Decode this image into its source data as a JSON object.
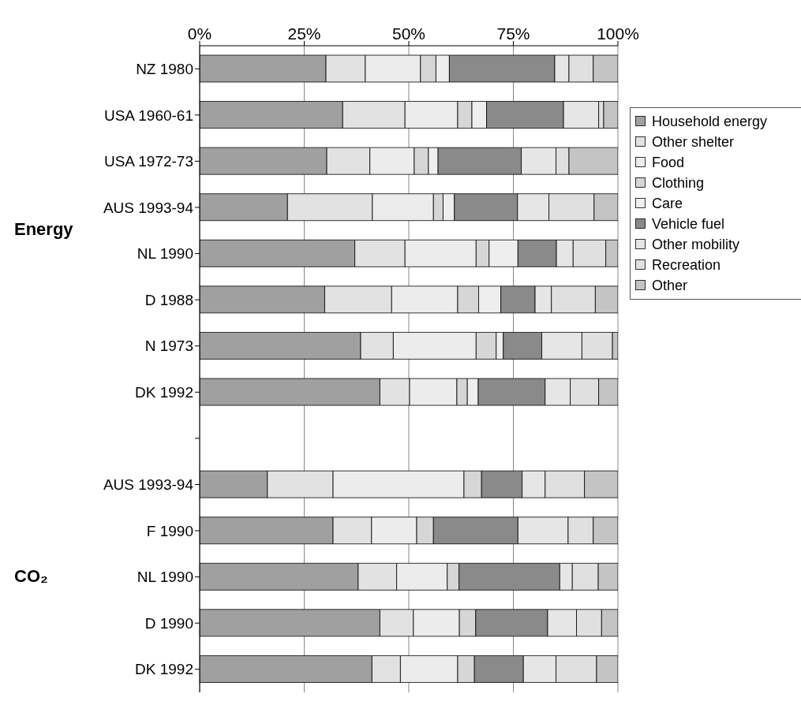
{
  "chart_data": {
    "type": "bar",
    "orientation": "horizontal",
    "stacked": true,
    "categories": [
      "NZ 1980",
      "USA 1960-61",
      "USA 1972-73",
      "AUS 1993-94",
      "NL 1990",
      "D 1988",
      "N 1973",
      "DK 1992",
      null,
      "AUS 1993-94",
      "F 1990",
      "NL 1990",
      "D 1990",
      "DK 1992"
    ],
    "series": [
      {
        "name": "Household energy",
        "color": "#a0a0a0",
        "values": [
          30.2,
          34.2,
          30.4,
          21.0,
          37.1,
          29.9,
          38.5,
          43.1,
          null,
          16.2,
          31.9,
          37.9,
          43.1,
          41.2
        ]
      },
      {
        "name": "Other shelter",
        "color": "#e2e2e2",
        "values": [
          9.4,
          14.9,
          10.3,
          20.3,
          12.0,
          16.0,
          7.8,
          7.1,
          null,
          15.7,
          9.2,
          9.2,
          8.0,
          6.8
        ]
      },
      {
        "name": "Food",
        "color": "#ececec",
        "values": [
          13.2,
          12.6,
          10.6,
          14.6,
          17.0,
          15.8,
          19.8,
          11.3,
          null,
          31.3,
          10.8,
          12.1,
          11.0,
          13.7
        ]
      },
      {
        "name": "Clothing",
        "color": "#d6d6d6",
        "values": [
          3.7,
          3.4,
          3.4,
          2.3,
          3.1,
          5.0,
          4.8,
          2.5,
          null,
          4.2,
          4.0,
          2.8,
          3.9,
          4.0
        ]
      },
      {
        "name": "Care",
        "color": "#eeeeee",
        "values": [
          3.2,
          3.5,
          2.3,
          2.7,
          6.9,
          5.3,
          1.7,
          2.6,
          null,
          0,
          0,
          0,
          0,
          0
        ]
      },
      {
        "name": "Vehicle fuel",
        "color": "#8a8a8a",
        "values": [
          25.2,
          18.4,
          19.9,
          15.1,
          9.2,
          8.2,
          9.2,
          16.0,
          null,
          9.7,
          20.2,
          24.1,
          17.2,
          11.7
        ]
      },
      {
        "name": "Other mobility",
        "color": "#e6e6e6",
        "values": [
          3.4,
          8.4,
          8.3,
          7.5,
          4.0,
          3.9,
          9.6,
          6.0,
          null,
          5.5,
          12.0,
          3.0,
          6.9,
          7.8
        ]
      },
      {
        "name": "Recreation",
        "color": "#e0e0e0",
        "values": [
          5.8,
          1.2,
          3.1,
          10.8,
          7.8,
          10.5,
          7.3,
          6.8,
          null,
          9.4,
          6.0,
          6.2,
          6.0,
          9.7
        ]
      },
      {
        "name": "Other",
        "color": "#c4c4c4",
        "values": [
          5.9,
          3.4,
          11.7,
          5.7,
          2.9,
          5.4,
          1.3,
          4.6,
          null,
          8.0,
          5.9,
          4.7,
          3.9,
          5.1
        ]
      }
    ],
    "xlim": [
      0,
      100
    ],
    "xticks": [
      {
        "value": 0,
        "label": "0%"
      },
      {
        "value": 25,
        "label": "25%"
      },
      {
        "value": 50,
        "label": "50%"
      },
      {
        "value": 75,
        "label": "75%"
      },
      {
        "value": 100,
        "label": "100%"
      }
    ],
    "grid": "x",
    "legend": "right",
    "annotations": [
      "Energy",
      "CO₂"
    ]
  }
}
